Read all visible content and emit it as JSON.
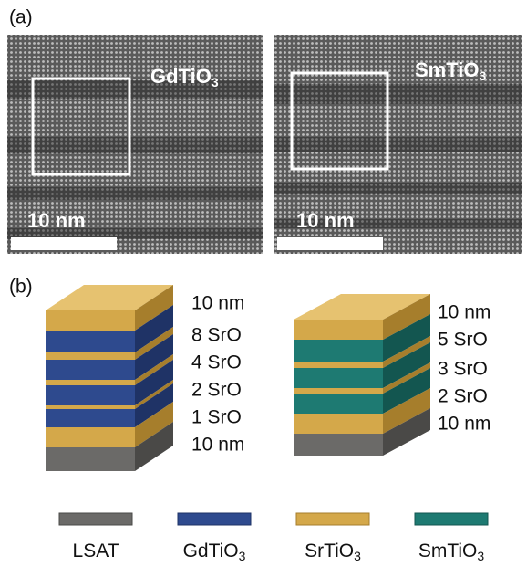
{
  "panel_a": {
    "label": "(a)",
    "images": [
      {
        "material": {
          "base": "GdTiO",
          "sub": "3"
        },
        "scale_bar": "10 nm"
      },
      {
        "material": {
          "base": "SmTiO",
          "sub": "3"
        },
        "scale_bar": "10 nm"
      }
    ]
  },
  "panel_b": {
    "label": "(b)",
    "stacks": [
      {
        "labels": [
          "10 nm",
          "8 SrO",
          "4 SrO",
          "2 SrO",
          "1 SrO",
          "10 nm"
        ]
      },
      {
        "labels": [
          "10 nm",
          "5 SrO",
          "3 SrO",
          "2 SrO",
          "10 nm"
        ]
      }
    ],
    "legend": [
      {
        "base": "LSAT",
        "sub": ""
      },
      {
        "base": "GdTiO",
        "sub": "3"
      },
      {
        "base": "SrTiO",
        "sub": "3"
      },
      {
        "base": "SmTiO",
        "sub": "3"
      }
    ]
  }
}
